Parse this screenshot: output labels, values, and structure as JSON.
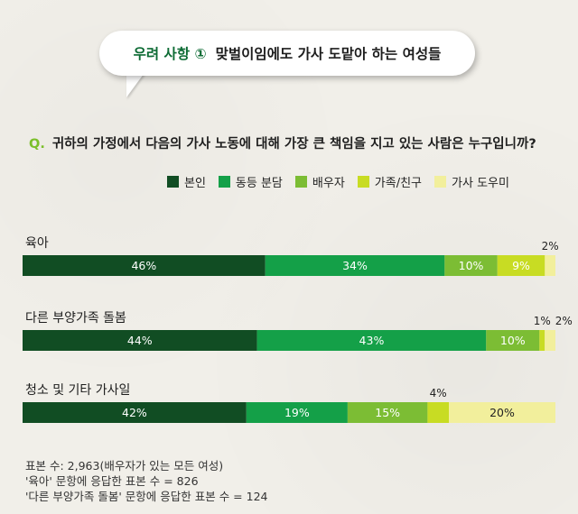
{
  "header": {
    "topic_label": "우려 사항 ①",
    "title": "맞벌이임에도 가사 도맡아 하는 여성들"
  },
  "question": {
    "prefix": "Q.",
    "text": "귀하의 가정에서 다음의 가사 노동에 대해 가장 큰 책임을 지고 있는 사람은 누구입니까?"
  },
  "legend": [
    {
      "label": "본인",
      "color": "#114d23"
    },
    {
      "label": "동등 분담",
      "color": "#14a048"
    },
    {
      "label": "배우자",
      "color": "#7cbd34"
    },
    {
      "label": "가족/친구",
      "color": "#c8dc23"
    },
    {
      "label": "가사 도우미",
      "color": "#f2ef9c"
    }
  ],
  "chart_data": {
    "type": "bar",
    "orientation": "horizontal",
    "stacked": true,
    "unit": "%",
    "categories": [
      "육아",
      "다른 부양가족 돌봄",
      "청소 및 기타 가사일"
    ],
    "series": [
      {
        "name": "본인",
        "values": [
          46,
          44,
          42
        ]
      },
      {
        "name": "동등 분담",
        "values": [
          34,
          43,
          19
        ]
      },
      {
        "name": "배우자",
        "values": [
          10,
          10,
          15
        ]
      },
      {
        "name": "가족/친구",
        "values": [
          9,
          1,
          4
        ]
      },
      {
        "name": "가사 도우미",
        "values": [
          2,
          2,
          20
        ]
      }
    ],
    "xlim": [
      0,
      100
    ]
  },
  "footer": {
    "line1": "표본 수: 2,963(배우자가 있는 모든 여성)",
    "line2": "'육아' 문항에 응답한 표본 수 = 826",
    "line3": "'다른 부양가족 돌봄' 문항에 응답한 표본 수 = 124"
  }
}
